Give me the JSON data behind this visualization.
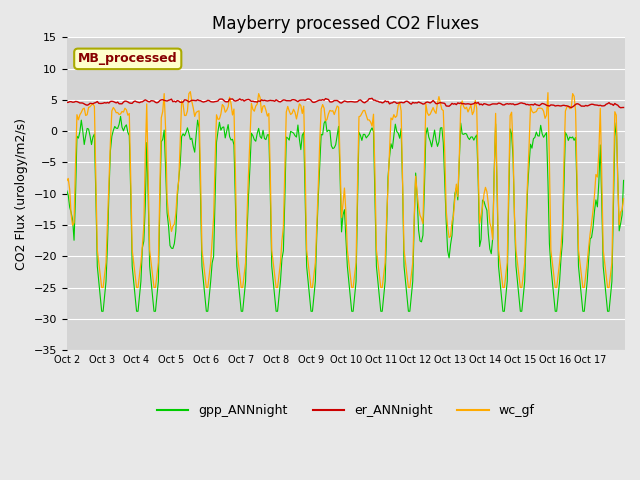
{
  "title": "Mayberry processed CO2 Fluxes",
  "ylabel": "CO2 Flux (urology/m2/s)",
  "ylim": [
    -35,
    15
  ],
  "yticks": [
    -35,
    -30,
    -25,
    -20,
    -15,
    -10,
    -5,
    0,
    5,
    10,
    15
  ],
  "background_color": "#e8e8e8",
  "plot_bg": "#d4d4d4",
  "legend_label_gpp": "gpp_ANNnight",
  "legend_label_er": "er_ANNnight",
  "legend_label_wc": "wc_gf",
  "color_gpp": "#00cc00",
  "color_er": "#cc0000",
  "color_wc": "#ffaa00",
  "annotation_text": "MB_processed",
  "annotation_color": "#880000",
  "annotation_bg": "#ffffcc",
  "x_tick_labels": [
    "Oct 2",
    "Oct 3",
    "Oct 4",
    "Oct 5",
    "Oct 6",
    "Oct 7",
    "Oct 8",
    "Oct 9",
    "Oct 10",
    "Oct 11",
    "Oct 12",
    "Oct 13",
    "Oct 14",
    "Oct 15",
    "Oct 16",
    "Oct 17"
  ],
  "n_points": 384,
  "days": 16
}
